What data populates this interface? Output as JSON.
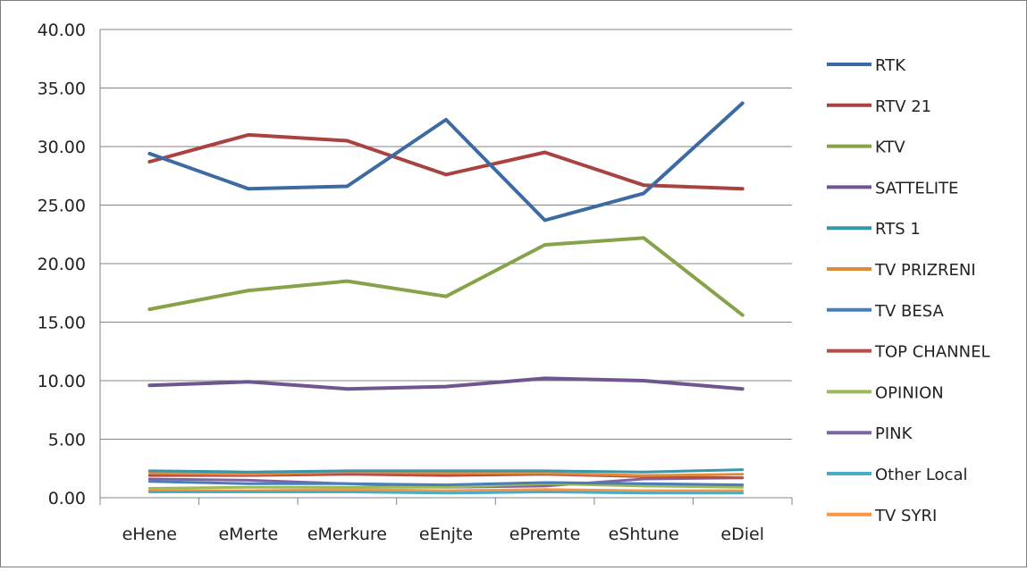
{
  "chart_data": {
    "type": "line",
    "title": "",
    "xlabel": "",
    "ylabel": "",
    "categories": [
      "eHene",
      "eMerte",
      "eMerkure",
      "eEnjte",
      "ePremte",
      "eShtune",
      "eDiel"
    ],
    "ylim": [
      0,
      40
    ],
    "y_ticks": [
      "40.00",
      "35.00",
      "30.00",
      "25.00",
      "20.00",
      "15.00",
      "10.00",
      "5.00",
      "0.00"
    ],
    "grid": true,
    "legend_position": "right",
    "series": [
      {
        "name": "RTK",
        "color": "#3d6aa2",
        "values": [
          29.4,
          26.4,
          26.6,
          32.3,
          23.7,
          26.0,
          33.7
        ]
      },
      {
        "name": "RTV 21",
        "color": "#a84340",
        "values": [
          28.7,
          31.0,
          30.5,
          27.6,
          29.5,
          26.7,
          26.4
        ]
      },
      {
        "name": "KTV",
        "color": "#86a34a",
        "values": [
          16.1,
          17.7,
          18.5,
          17.2,
          21.6,
          22.2,
          15.6
        ]
      },
      {
        "name": "SATTELITE",
        "color": "#6f568f",
        "values": [
          9.6,
          9.9,
          9.3,
          9.5,
          10.2,
          10.0,
          9.3
        ]
      },
      {
        "name": "RTS 1",
        "color": "#3a95ab",
        "values": [
          2.3,
          2.2,
          2.3,
          2.3,
          2.3,
          2.2,
          2.4
        ]
      },
      {
        "name": "TV PRIZRENI",
        "color": "#e08a3a",
        "values": [
          2.1,
          2.0,
          2.2,
          2.1,
          2.1,
          1.9,
          2.0
        ]
      },
      {
        "name": "TV BESA",
        "color": "#4a7ebb",
        "values": [
          1.4,
          1.2,
          1.2,
          1.1,
          1.3,
          1.2,
          1.1
        ]
      },
      {
        "name": "TOP CHANNEL",
        "color": "#b64b48",
        "values": [
          1.9,
          1.9,
          2.0,
          1.9,
          2.0,
          1.8,
          1.7
        ]
      },
      {
        "name": "OPINION",
        "color": "#9bbb59",
        "values": [
          0.8,
          0.9,
          0.9,
          0.9,
          1.2,
          1.0,
          0.9
        ]
      },
      {
        "name": "PINK",
        "color": "#8064a2",
        "values": [
          1.6,
          1.5,
          1.2,
          0.9,
          1.0,
          1.6,
          1.7
        ]
      },
      {
        "name": "Other Local",
        "color": "#4bacc6",
        "values": [
          0.5,
          0.5,
          0.5,
          0.4,
          0.5,
          0.4,
          0.4
        ]
      },
      {
        "name": "TV SYRI",
        "color": "#f79646",
        "values": [
          0.6,
          0.6,
          0.7,
          0.6,
          0.7,
          0.6,
          0.6
        ]
      }
    ]
  }
}
